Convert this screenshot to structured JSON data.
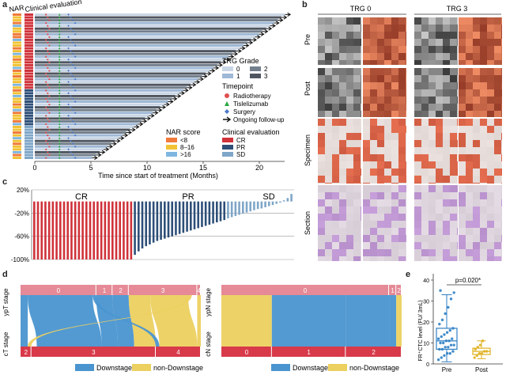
{
  "panel_labels": {
    "a": "a",
    "b": "b",
    "c": "c",
    "d": "d",
    "e": "e"
  },
  "panel_a": {
    "col_headers": [
      "NAR",
      "Clinical evaluation"
    ],
    "xlabel": "Time since start of treatment (Months)",
    "xticks": [
      "0",
      "5",
      "10",
      "15",
      "20"
    ],
    "legend_trg": {
      "title": "TRG Grade",
      "items": [
        "0",
        "1",
        "2",
        "3"
      ]
    },
    "legend_timepoint": {
      "title": "Timepoint",
      "items": [
        "Radiotherapy",
        "Tislelizumab",
        "Surgery",
        "Ongoing follow-up"
      ]
    },
    "legend_nar": {
      "title": "NAR score",
      "items": [
        "<8",
        "8–16",
        ">16"
      ]
    },
    "legend_clin": {
      "title": "Clinical evaluation",
      "items": [
        "CR",
        "PR",
        "SD"
      ]
    },
    "colors": {
      "trg0": "#c9d6e6",
      "trg1": "#9fb8d6",
      "trg2": "#737f8c",
      "trg3": "#4f5660",
      "radio": "#e05050",
      "tisle": "#2aa642",
      "surgery": "#4a78c8",
      "nar1": "#f07a3a",
      "nar2": "#f2c233",
      "nar3": "#7fb6e0",
      "cr": "#d0323a",
      "pr": "#2e4f78",
      "sd": "#7ea6c8"
    }
  },
  "panel_b": {
    "col_labels": [
      "TRG 0",
      "TRG 3"
    ],
    "row_labels": [
      "Pre",
      "Post",
      "Specimen",
      "Section"
    ]
  },
  "panel_c": {
    "chart_data": {
      "type": "bar",
      "group_labels": [
        "CR",
        "PR",
        "SD"
      ],
      "yticks": [
        "20%",
        "-20%",
        "-60%",
        "-100%"
      ],
      "ylim": [
        -100,
        20
      ],
      "groups": [
        {
          "name": "CR",
          "values": [
            -100,
            -100,
            -100,
            -100,
            -100,
            -100,
            -100,
            -100,
            -100,
            -100,
            -100,
            -100,
            -100,
            -100,
            -100,
            -100,
            -100,
            -100,
            -100,
            -100,
            -100,
            -100,
            -100,
            -100,
            -100,
            -100,
            -100
          ]
        },
        {
          "name": "PR",
          "values": [
            -92,
            -86,
            -81,
            -77,
            -74,
            -71,
            -68,
            -66,
            -64,
            -62,
            -60,
            -58,
            -56,
            -54,
            -52,
            -50,
            -48,
            -46,
            -44,
            -42,
            -40,
            -38,
            -36,
            -34,
            -32
          ]
        },
        {
          "name": "SD",
          "values": [
            -29,
            -27,
            -25,
            -23,
            -21,
            -19,
            -17,
            -15,
            -13,
            -12,
            -10,
            -8,
            -6,
            -4,
            -2,
            2,
            6,
            13
          ]
        }
      ]
    }
  },
  "panel_d": {
    "left": {
      "top_axis": "ypT stage",
      "bottom_axis": "cT stage",
      "top_nodes": [
        "0",
        "1",
        "2",
        "3",
        "4"
      ],
      "bottom_nodes": [
        "2",
        "3",
        "4"
      ]
    },
    "right": {
      "top_axis": "ypN stage",
      "bottom_axis": "cN stage",
      "top_nodes": [
        "0",
        "1",
        "2"
      ],
      "bottom_nodes": [
        "0",
        "1",
        "2"
      ]
    },
    "legend": [
      "Downstage",
      "non-Downstage"
    ],
    "colors": {
      "down": "#4a95d0",
      "non": "#ecd060",
      "top": "#e58a96",
      "bottom": "#d83a4a"
    }
  },
  "panel_e": {
    "chart_data": {
      "type": "box",
      "categories": [
        "Pre",
        "Post"
      ],
      "ylabel": "FR⁺CTC level (FU/ 3mL)",
      "yticks": [
        "0",
        "10",
        "20",
        "30",
        "40"
      ],
      "ylim": [
        0,
        40
      ],
      "pvalue": "p=0.020*",
      "series": [
        {
          "name": "Pre",
          "q1": 7,
          "median": 11,
          "q3": 17,
          "min": 1,
          "max": 33,
          "points": [
            2,
            3,
            4,
            5,
            5,
            6,
            7,
            7,
            8,
            8,
            9,
            9,
            10,
            10,
            11,
            11,
            12,
            12,
            13,
            14,
            15,
            16,
            17,
            19,
            21,
            24,
            27,
            31,
            34,
            35
          ]
        },
        {
          "name": "Post",
          "q1": 4.5,
          "median": 6,
          "q3": 7.5,
          "min": 2.5,
          "max": 11,
          "points": [
            3,
            4,
            5,
            5,
            6,
            6,
            7,
            8,
            9,
            11
          ]
        }
      ]
    }
  }
}
